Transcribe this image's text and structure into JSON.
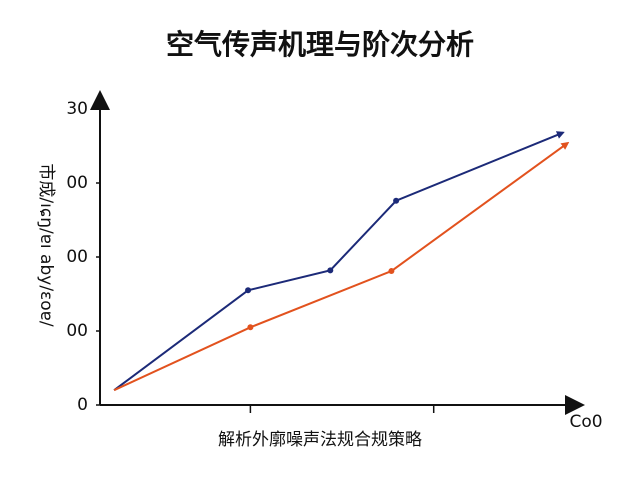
{
  "chart_data": {
    "type": "line",
    "title": "空气传声机理与阶次分析",
    "x_label": "解析外廓噪声法规合规策略",
    "y_label": "市成/ıɕŋ/ɐı aby/ɛoɐ/",
    "x_end_label": "Co0",
    "xlim": [
      0,
      100
    ],
    "xticks": [
      32,
      71
    ],
    "ylim": [
      0,
      40
    ],
    "yticks": [
      0,
      {
        "value": 10,
        "label": "00"
      },
      {
        "value": 20,
        "label": "00"
      },
      {
        "value": 30,
        "label": "00"
      },
      {
        "value": 40,
        "label": "30"
      }
    ],
    "series": [
      {
        "color": "#1c2a78",
        "x": [
          3,
          31.5,
          49,
          63,
          98.5
        ],
        "values": [
          2,
          15.5,
          18.2,
          27.6,
          36.8
        ]
      },
      {
        "color": "#e2521e",
        "x": [
          3,
          32,
          62,
          99.5
        ],
        "values": [
          2,
          10.5,
          18.1,
          35.4
        ]
      }
    ]
  }
}
